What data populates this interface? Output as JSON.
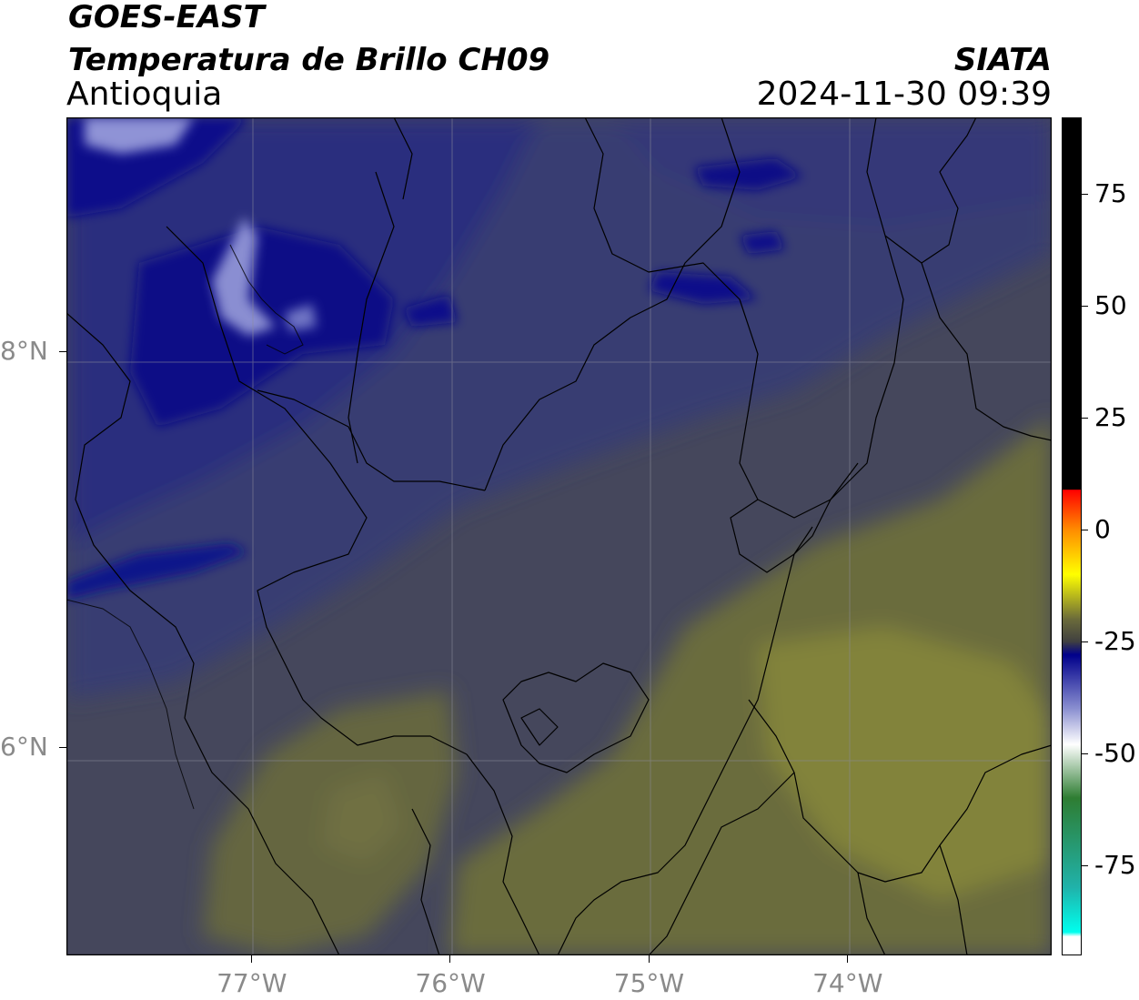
{
  "header": {
    "satellite": "GOES-EAST",
    "product": "Temperatura de Brillo CH09",
    "region": "Antioquia",
    "institution": "SIATA",
    "datetime": "2024-11-30 09:39"
  },
  "map": {
    "lon_range": [
      -77.93,
      -72.97
    ],
    "lat_range": [
      4.95,
      9.18
    ],
    "lon_ticks": [
      {
        "value": -77,
        "label": "77°W"
      },
      {
        "value": -76,
        "label": "76°W"
      },
      {
        "value": -75,
        "label": "75°W"
      },
      {
        "value": -74,
        "label": "74°W"
      }
    ],
    "lat_ticks": [
      {
        "value": 8,
        "label": "8°N"
      },
      {
        "value": 6,
        "label": "6°N"
      }
    ],
    "gridlines": true,
    "colors": {
      "cold_cloud_navy": "#0a0f7a",
      "mid_blue": "#343a78",
      "gray_mid": "#474a60",
      "warm_olive": "#6b6d3a",
      "warmest_olive": "#898a38"
    }
  },
  "colorbar": {
    "range": [
      -95,
      92
    ],
    "ticks": [
      {
        "value": 75,
        "label": "75"
      },
      {
        "value": 50,
        "label": "50"
      },
      {
        "value": 25,
        "label": "25"
      },
      {
        "value": 0,
        "label": "0"
      },
      {
        "value": -25,
        "label": "-25"
      },
      {
        "value": -50,
        "label": "-50"
      },
      {
        "value": -75,
        "label": "-75"
      }
    ],
    "stops": [
      {
        "value": 92,
        "color": "#000000"
      },
      {
        "value": 9,
        "color": "#000000"
      },
      {
        "value": 8.9,
        "color": "#ff0000"
      },
      {
        "value": 0,
        "color": "#ff8c00"
      },
      {
        "value": -10,
        "color": "#ffff00"
      },
      {
        "value": -20,
        "color": "#6b6b3a"
      },
      {
        "value": -25,
        "color": "#404040"
      },
      {
        "value": -28,
        "color": "#00008b"
      },
      {
        "value": -40,
        "color": "#8a8fd0"
      },
      {
        "value": -48,
        "color": "#ffffff"
      },
      {
        "value": -60,
        "color": "#2e7d32"
      },
      {
        "value": -80,
        "color": "#20b2aa"
      },
      {
        "value": -90,
        "color": "#00ffee"
      },
      {
        "value": -91,
        "color": "#ffffff"
      },
      {
        "value": -95,
        "color": "#ffffff"
      }
    ]
  }
}
